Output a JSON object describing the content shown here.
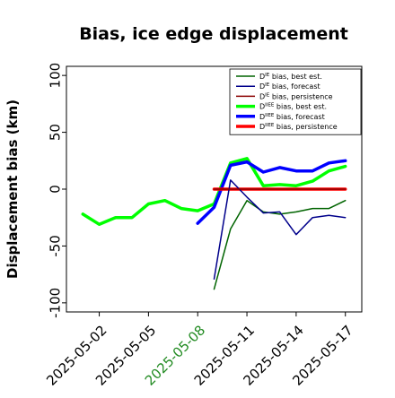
{
  "chart_data": {
    "type": "line",
    "title": "Bias, ice edge displacement",
    "ylabel": "Displacement bias (km)",
    "xlabel": "",
    "ylim": [
      -108,
      108
    ],
    "xlim": [
      "2025-04-30",
      "2025-05-18"
    ],
    "grid": false,
    "legend_position": "top-right",
    "yticks": [
      100,
      50,
      0,
      -50,
      -100
    ],
    "yticklabels": [
      "100",
      "50",
      "0",
      "-50",
      "-100"
    ],
    "xticks": [
      "2025-05-02",
      "2025-05-05",
      "2025-05-08",
      "2025-05-11",
      "2025-05-14",
      "2025-05-17"
    ],
    "xticklabels": [
      "2025-05-02",
      "2025-05-05",
      "2025-05-08",
      "2025-05-11",
      "2025-05-14",
      "2025-05-17"
    ],
    "highlight_ticklabel": "2025-05-08",
    "highlight_color": "#228b22",
    "legend_entries": [
      "D$^{IE}$ bias, best est.",
      "D$^{IE}$ bias, forecast",
      "D$^{IE}$ bias, persistence",
      "D$^{IIEE}$ bias, best est.",
      "D$^{IIEE}$ bias, forecast",
      "D$^{IIEE}$ bias, persistence"
    ],
    "series": [
      {
        "legend_main": "D",
        "legend_sup": "IE",
        "legend_rest": " bias, best est.",
        "color": "#006400",
        "width": 1.5,
        "points": [
          [
            "2025-05-09",
            -88
          ],
          [
            "2025-05-10",
            -35
          ],
          [
            "2025-05-11",
            -10
          ],
          [
            "2025-05-12",
            -20
          ],
          [
            "2025-05-13",
            -22
          ],
          [
            "2025-05-14",
            -20
          ],
          [
            "2025-05-15",
            -17
          ],
          [
            "2025-05-16",
            -17
          ],
          [
            "2025-05-17",
            -10
          ]
        ]
      },
      {
        "legend_main": "D",
        "legend_sup": "IE",
        "legend_rest": " bias, forecast",
        "color": "#00008b",
        "width": 1.5,
        "points": [
          [
            "2025-05-09",
            -79
          ],
          [
            "2025-05-10",
            8
          ],
          [
            "2025-05-11",
            -7
          ],
          [
            "2025-05-12",
            -21
          ],
          [
            "2025-05-13",
            -20
          ],
          [
            "2025-05-14",
            -40
          ],
          [
            "2025-05-15",
            -25
          ],
          [
            "2025-05-16",
            -23
          ],
          [
            "2025-05-17",
            -25
          ]
        ]
      },
      {
        "legend_main": "D",
        "legend_sup": "IE",
        "legend_rest": " bias, persistence",
        "color": "#8b0000",
        "width": 1.5,
        "points": [
          [
            "2025-05-09",
            0
          ],
          [
            "2025-05-17",
            0
          ]
        ]
      },
      {
        "legend_main": "D",
        "legend_sup": "IIEE",
        "legend_rest": " bias, best est.",
        "color": "#00ff00",
        "width": 3.5,
        "points": [
          [
            "2025-05-01",
            -22
          ],
          [
            "2025-05-02",
            -31
          ],
          [
            "2025-05-03",
            -25
          ],
          [
            "2025-05-04",
            -25
          ],
          [
            "2025-05-05",
            -13
          ],
          [
            "2025-05-06",
            -10
          ],
          [
            "2025-05-07",
            -17
          ],
          [
            "2025-05-08",
            -19
          ],
          [
            "2025-05-09",
            -13
          ],
          [
            "2025-05-10",
            23
          ],
          [
            "2025-05-11",
            27
          ],
          [
            "2025-05-12",
            3
          ],
          [
            "2025-05-13",
            4
          ],
          [
            "2025-05-14",
            3
          ],
          [
            "2025-05-15",
            7
          ],
          [
            "2025-05-16",
            16
          ],
          [
            "2025-05-17",
            20
          ]
        ]
      },
      {
        "legend_main": "D",
        "legend_sup": "IIEE",
        "legend_rest": " bias, forecast",
        "color": "#0000ff",
        "width": 3.5,
        "points": [
          [
            "2025-05-08",
            -30
          ],
          [
            "2025-05-09",
            -16
          ],
          [
            "2025-05-10",
            21
          ],
          [
            "2025-05-11",
            24
          ],
          [
            "2025-05-12",
            15
          ],
          [
            "2025-05-13",
            19
          ],
          [
            "2025-05-14",
            16
          ],
          [
            "2025-05-15",
            16
          ],
          [
            "2025-05-16",
            23
          ],
          [
            "2025-05-17",
            25
          ]
        ]
      },
      {
        "legend_main": "D",
        "legend_sup": "IIEE",
        "legend_rest": " bias, persistence",
        "color": "#ff0000",
        "width": 3.5,
        "points": [
          [
            "2025-05-09",
            0
          ],
          [
            "2025-05-17",
            0
          ]
        ]
      }
    ]
  }
}
